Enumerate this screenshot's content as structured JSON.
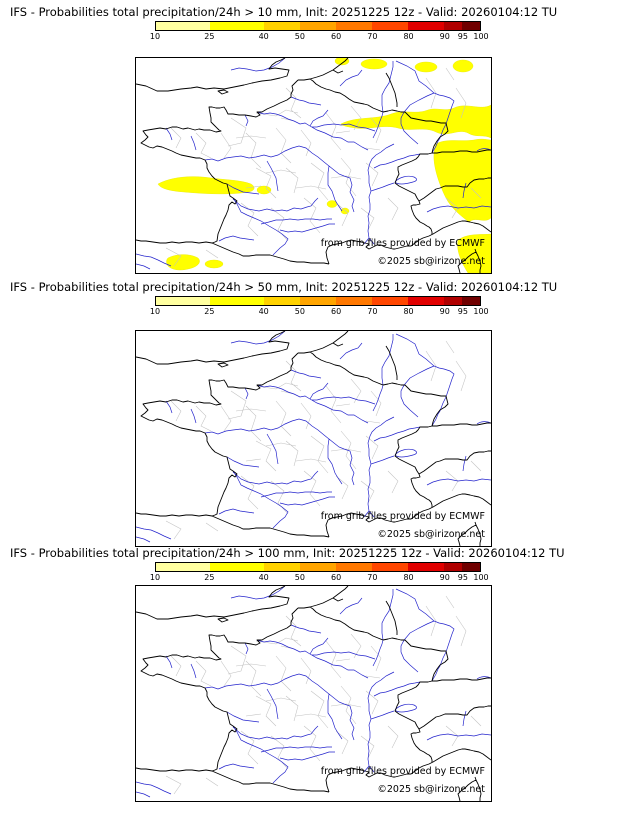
{
  "panels": [
    {
      "title": "IFS - Probabilities total precipitation/24h > 10 mm, Init: 20251225 12z - Valid: 20260104:12 TU",
      "threshold_mm": "10",
      "attribution": "from grib files provided by ECMWF",
      "copyright": "©2025 sb@irizone.net",
      "has_probability_shading": true
    },
    {
      "title": "IFS - Probabilities total precipitation/24h > 50 mm, Init: 20251225 12z - Valid: 20260104:12 TU",
      "threshold_mm": "50",
      "attribution": "from grib files provided by ECMWF",
      "copyright": "©2025 sb@irizone.net",
      "has_probability_shading": false
    },
    {
      "title": "IFS - Probabilities total precipitation/24h > 100 mm, Init: 20251225 12z - Valid: 20260104:12 TU",
      "threshold_mm": "100",
      "attribution": "from grib files provided by ECMWF",
      "copyright": "©2025 sb@irizone.net",
      "has_probability_shading": false
    }
  ],
  "colorbar": {
    "ticks": [
      10,
      25,
      40,
      50,
      60,
      70,
      80,
      90,
      95,
      100
    ],
    "colors": [
      "#ffffa0",
      "#ffff00",
      "#ffd200",
      "#ffa500",
      "#ff7800",
      "#ff4600",
      "#e10000",
      "#b00000",
      "#700000"
    ]
  },
  "map": {
    "coast_border_color": "#000000",
    "river_color": "#2424cc",
    "department_border_color": "#c2c2c2",
    "probability_shading_color": "#ffff00",
    "region": "France and surrounding countries"
  }
}
